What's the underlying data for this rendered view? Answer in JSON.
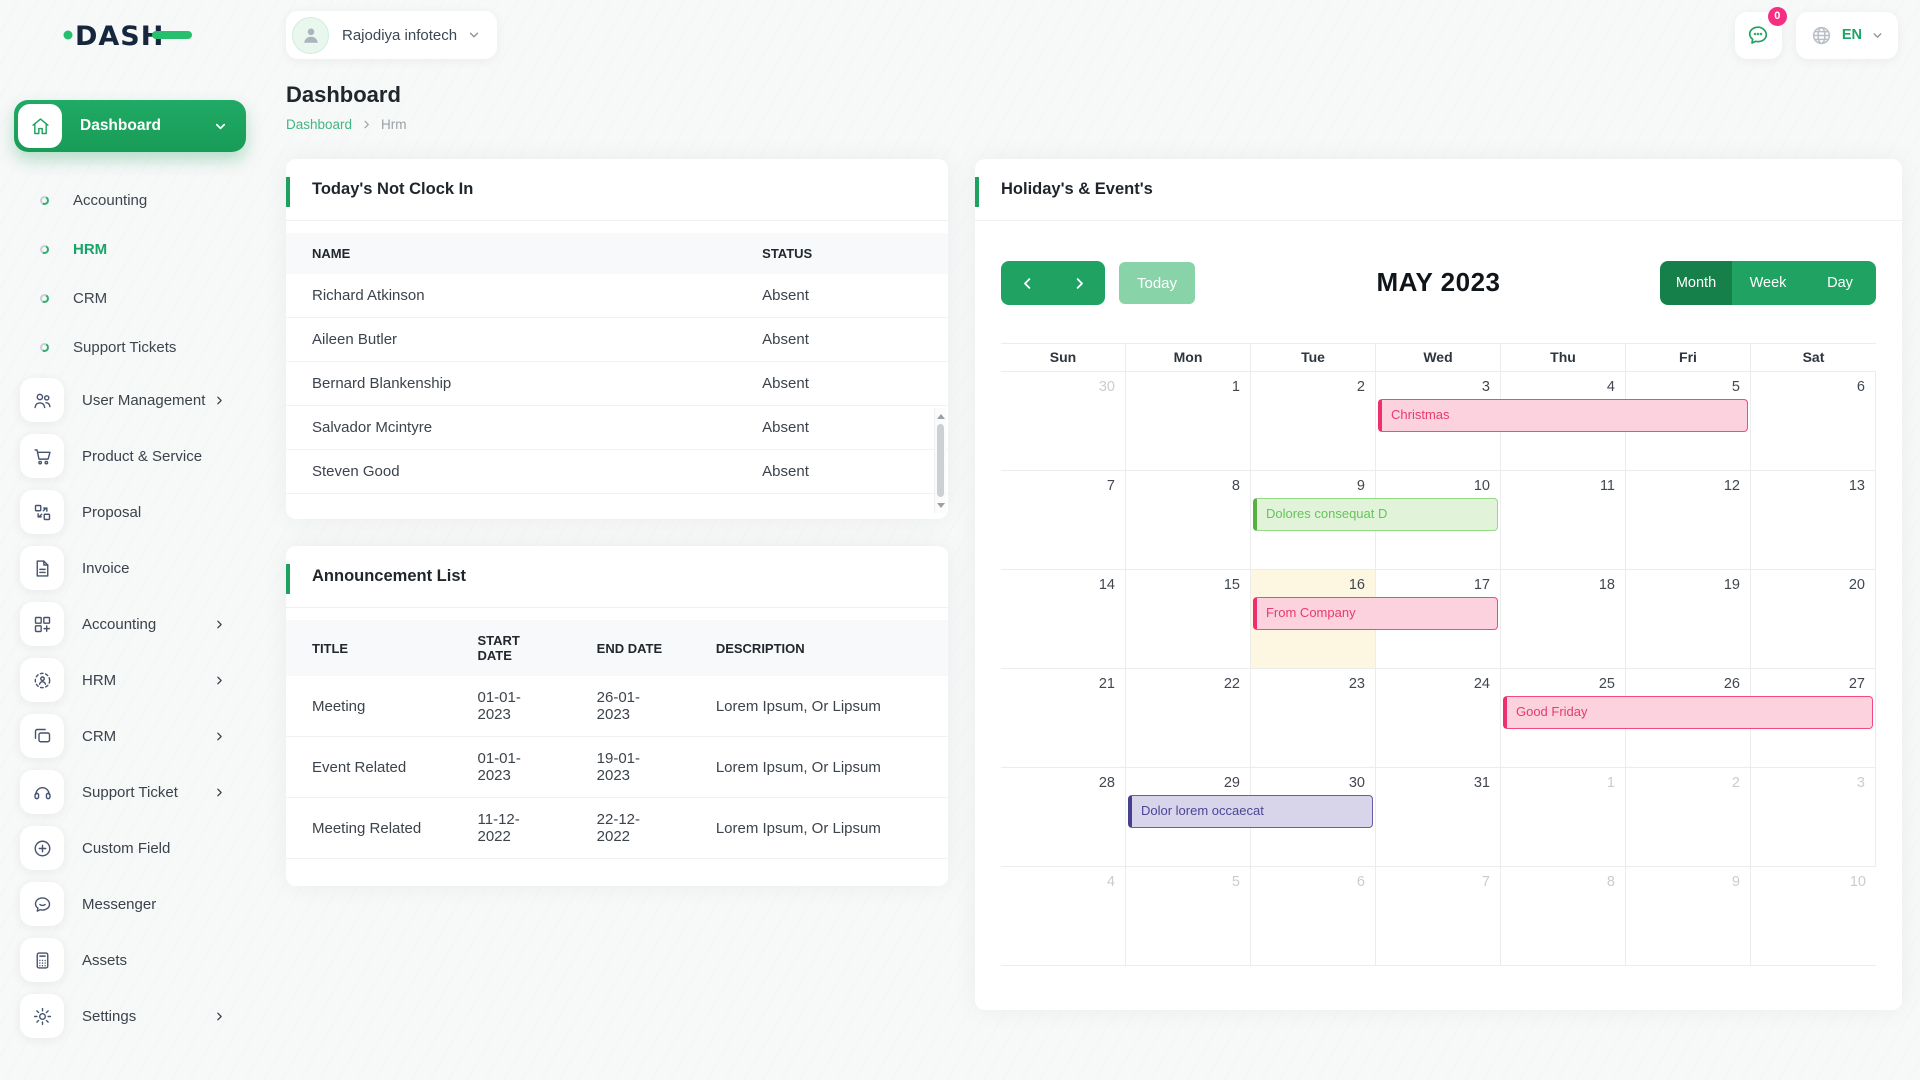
{
  "brand": {
    "logo_text": "DASH"
  },
  "topbar": {
    "company": "Rajodiya infotech",
    "notification_count": "0",
    "language": "EN"
  },
  "sidebar": {
    "items": [
      {
        "type": "parent-active",
        "icon": "home-icon",
        "label": "Dashboard"
      },
      {
        "type": "sub",
        "label": "Accounting"
      },
      {
        "type": "sub",
        "label": "HRM",
        "active": true
      },
      {
        "type": "sub",
        "label": "CRM"
      },
      {
        "type": "sub",
        "label": "Support Tickets"
      },
      {
        "type": "item",
        "icon": "users-icon",
        "label": "User Management",
        "chevron": true
      },
      {
        "type": "item",
        "icon": "cart-icon",
        "label": "Product & Service"
      },
      {
        "type": "item",
        "icon": "proposal-icon",
        "label": "Proposal"
      },
      {
        "type": "item",
        "icon": "invoice-icon",
        "label": "Invoice"
      },
      {
        "type": "item",
        "icon": "accounting-icon",
        "label": "Accounting",
        "chevron": true
      },
      {
        "type": "item",
        "icon": "hrm-icon",
        "label": "HRM",
        "chevron": true
      },
      {
        "type": "item",
        "icon": "crm-icon",
        "label": "CRM",
        "chevron": true
      },
      {
        "type": "item",
        "icon": "headset-icon",
        "label": "Support Ticket",
        "chevron": true
      },
      {
        "type": "item",
        "icon": "plus-circle-icon",
        "label": "Custom Field"
      },
      {
        "type": "item",
        "icon": "chat-icon",
        "label": "Messenger"
      },
      {
        "type": "item",
        "icon": "calculator-icon",
        "label": "Assets"
      },
      {
        "type": "item",
        "icon": "gear-icon",
        "label": "Settings",
        "chevron": true
      }
    ]
  },
  "page": {
    "title": "Dashboard",
    "breadcrumb_link": "Dashboard",
    "breadcrumb_current": "Hrm"
  },
  "clockin_card": {
    "title": "Today's Not Clock In",
    "columns": [
      "NAME",
      "STATUS"
    ],
    "rows": [
      [
        "Richard Atkinson",
        "Absent"
      ],
      [
        "Aileen Butler",
        "Absent"
      ],
      [
        "Bernard Blankenship",
        "Absent"
      ],
      [
        "Salvador Mcintyre",
        "Absent"
      ],
      [
        "Steven Good",
        "Absent"
      ]
    ]
  },
  "announcement_card": {
    "title": "Announcement List",
    "columns": [
      "TITLE",
      "START DATE",
      "END DATE",
      "DESCRIPTION"
    ],
    "rows": [
      [
        "Meeting",
        "01-01-2023",
        "26-01-2023",
        "Lorem Ipsum, Or Lipsum"
      ],
      [
        "Event Related",
        "01-01-2023",
        "19-01-2023",
        "Lorem Ipsum, Or Lipsum"
      ],
      [
        "Meeting Related",
        "11-12-2022",
        "22-12-2022",
        "Lorem Ipsum, Or Lipsum"
      ]
    ]
  },
  "calendar_card": {
    "title": "Holiday's & Event's",
    "toolbar": {
      "today_label": "Today",
      "title": "MAY 2023",
      "views": [
        "Month",
        "Week",
        "Day"
      ],
      "active_view": "Month"
    },
    "day_headers": [
      "Sun",
      "Mon",
      "Tue",
      "Wed",
      "Thu",
      "Fri",
      "Sat"
    ],
    "weeks": [
      [
        {
          "d": 30,
          "other": true
        },
        {
          "d": 1
        },
        {
          "d": 2
        },
        {
          "d": 3
        },
        {
          "d": 4
        },
        {
          "d": 5
        },
        {
          "d": 6
        }
      ],
      [
        {
          "d": 7
        },
        {
          "d": 8
        },
        {
          "d": 9
        },
        {
          "d": 10
        },
        {
          "d": 11
        },
        {
          "d": 12
        },
        {
          "d": 13
        }
      ],
      [
        {
          "d": 14
        },
        {
          "d": 15
        },
        {
          "d": 16,
          "today": true
        },
        {
          "d": 17
        },
        {
          "d": 18
        },
        {
          "d": 19
        },
        {
          "d": 20
        }
      ],
      [
        {
          "d": 21
        },
        {
          "d": 22
        },
        {
          "d": 23
        },
        {
          "d": 24
        },
        {
          "d": 25
        },
        {
          "d": 26
        },
        {
          "d": 27
        }
      ],
      [
        {
          "d": 28
        },
        {
          "d": 29
        },
        {
          "d": 30
        },
        {
          "d": 31
        },
        {
          "d": 1,
          "other": true
        },
        {
          "d": 2,
          "other": true
        },
        {
          "d": 3,
          "other": true
        }
      ],
      [
        {
          "d": 4,
          "other": true
        },
        {
          "d": 5,
          "other": true
        },
        {
          "d": 6,
          "other": true
        },
        {
          "d": 7,
          "other": true
        },
        {
          "d": 8,
          "other": true
        },
        {
          "d": 9,
          "other": true
        },
        {
          "d": 10,
          "other": true
        }
      ]
    ],
    "events": [
      {
        "label": "Christmas",
        "week": 0,
        "col": 3,
        "span": 3,
        "variant": "pink"
      },
      {
        "label": "Dolores consequat D",
        "week": 1,
        "col": 2,
        "span": 2,
        "variant": "green"
      },
      {
        "label": "From Company",
        "week": 2,
        "col": 2,
        "span": 2,
        "variant": "pink"
      },
      {
        "label": "Good Friday",
        "week": 3,
        "col": 4,
        "span": 3,
        "variant": "pink"
      },
      {
        "label": "Dolor lorem occaecat",
        "week": 4,
        "col": 1,
        "span": 2,
        "variant": "purple"
      }
    ]
  },
  "colors": {
    "primary_green": "#1da35f",
    "active_view_green": "#15804a",
    "today_button_green": "#89d3a9",
    "logo_navy": "#15263d",
    "badge_pink": "#f62f82",
    "today_cell": "#fdf6e0",
    "event_pink_bg": "#fbd2de",
    "event_pink_text": "#e93a6e",
    "event_green_bg": "#e1f4da",
    "event_green_text": "#67c25b",
    "event_purple_bg": "#d8d5eb",
    "event_purple_text": "#4c4596"
  }
}
